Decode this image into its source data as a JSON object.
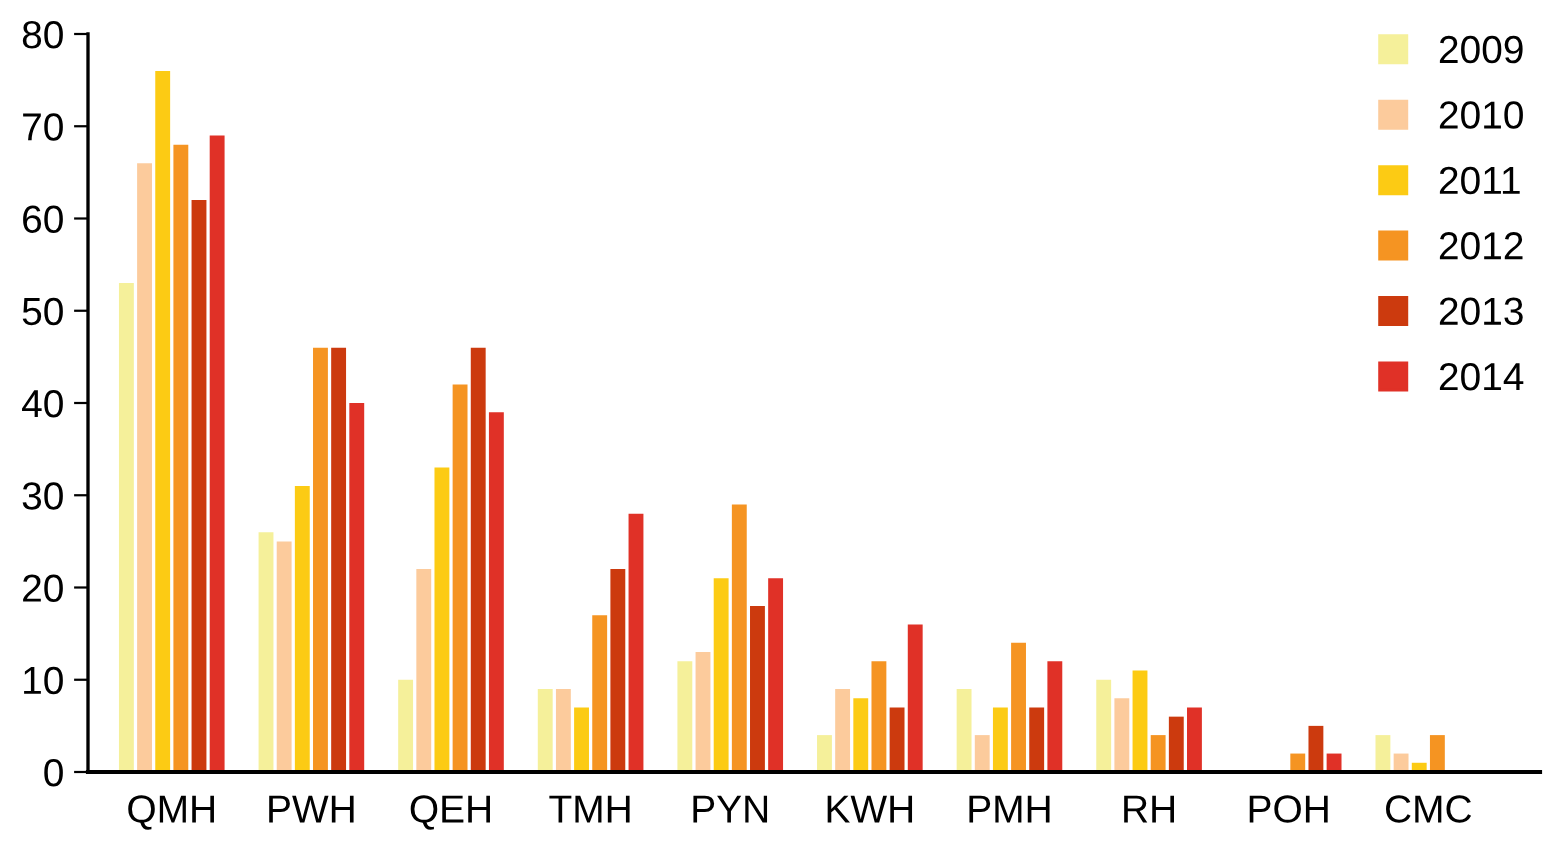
{
  "chart_data": {
    "type": "bar",
    "categories": [
      "QMH",
      "PWH",
      "QEH",
      "TMH",
      "PYN",
      "KWH",
      "PMH",
      "RH",
      "POH",
      "CMC"
    ],
    "series": [
      {
        "name": "2009",
        "color": "#f5f09a",
        "values": [
          53,
          26,
          10,
          9,
          12,
          4,
          9,
          10,
          0,
          4
        ]
      },
      {
        "name": "2010",
        "color": "#fccb9c",
        "values": [
          66,
          25,
          22,
          9,
          13,
          9,
          4,
          8,
          0,
          2
        ]
      },
      {
        "name": "2011",
        "color": "#fccb14",
        "values": [
          76,
          31,
          33,
          7,
          21,
          8,
          7,
          11,
          0,
          1
        ]
      },
      {
        "name": "2012",
        "color": "#f59422",
        "values": [
          68,
          46,
          42,
          17,
          29,
          12,
          14,
          4,
          2,
          4
        ]
      },
      {
        "name": "2013",
        "color": "#cc3a0e",
        "values": [
          62,
          46,
          46,
          22,
          18,
          7,
          7,
          6,
          5,
          0
        ]
      },
      {
        "name": "2014",
        "color": "#e03127",
        "values": [
          69,
          40,
          39,
          28,
          21,
          16,
          12,
          7,
          2,
          0
        ]
      }
    ],
    "ylim": [
      0,
      80
    ],
    "yticks": [
      0,
      10,
      20,
      30,
      40,
      50,
      60,
      70,
      80
    ],
    "grid": false,
    "legend": "top right"
  }
}
